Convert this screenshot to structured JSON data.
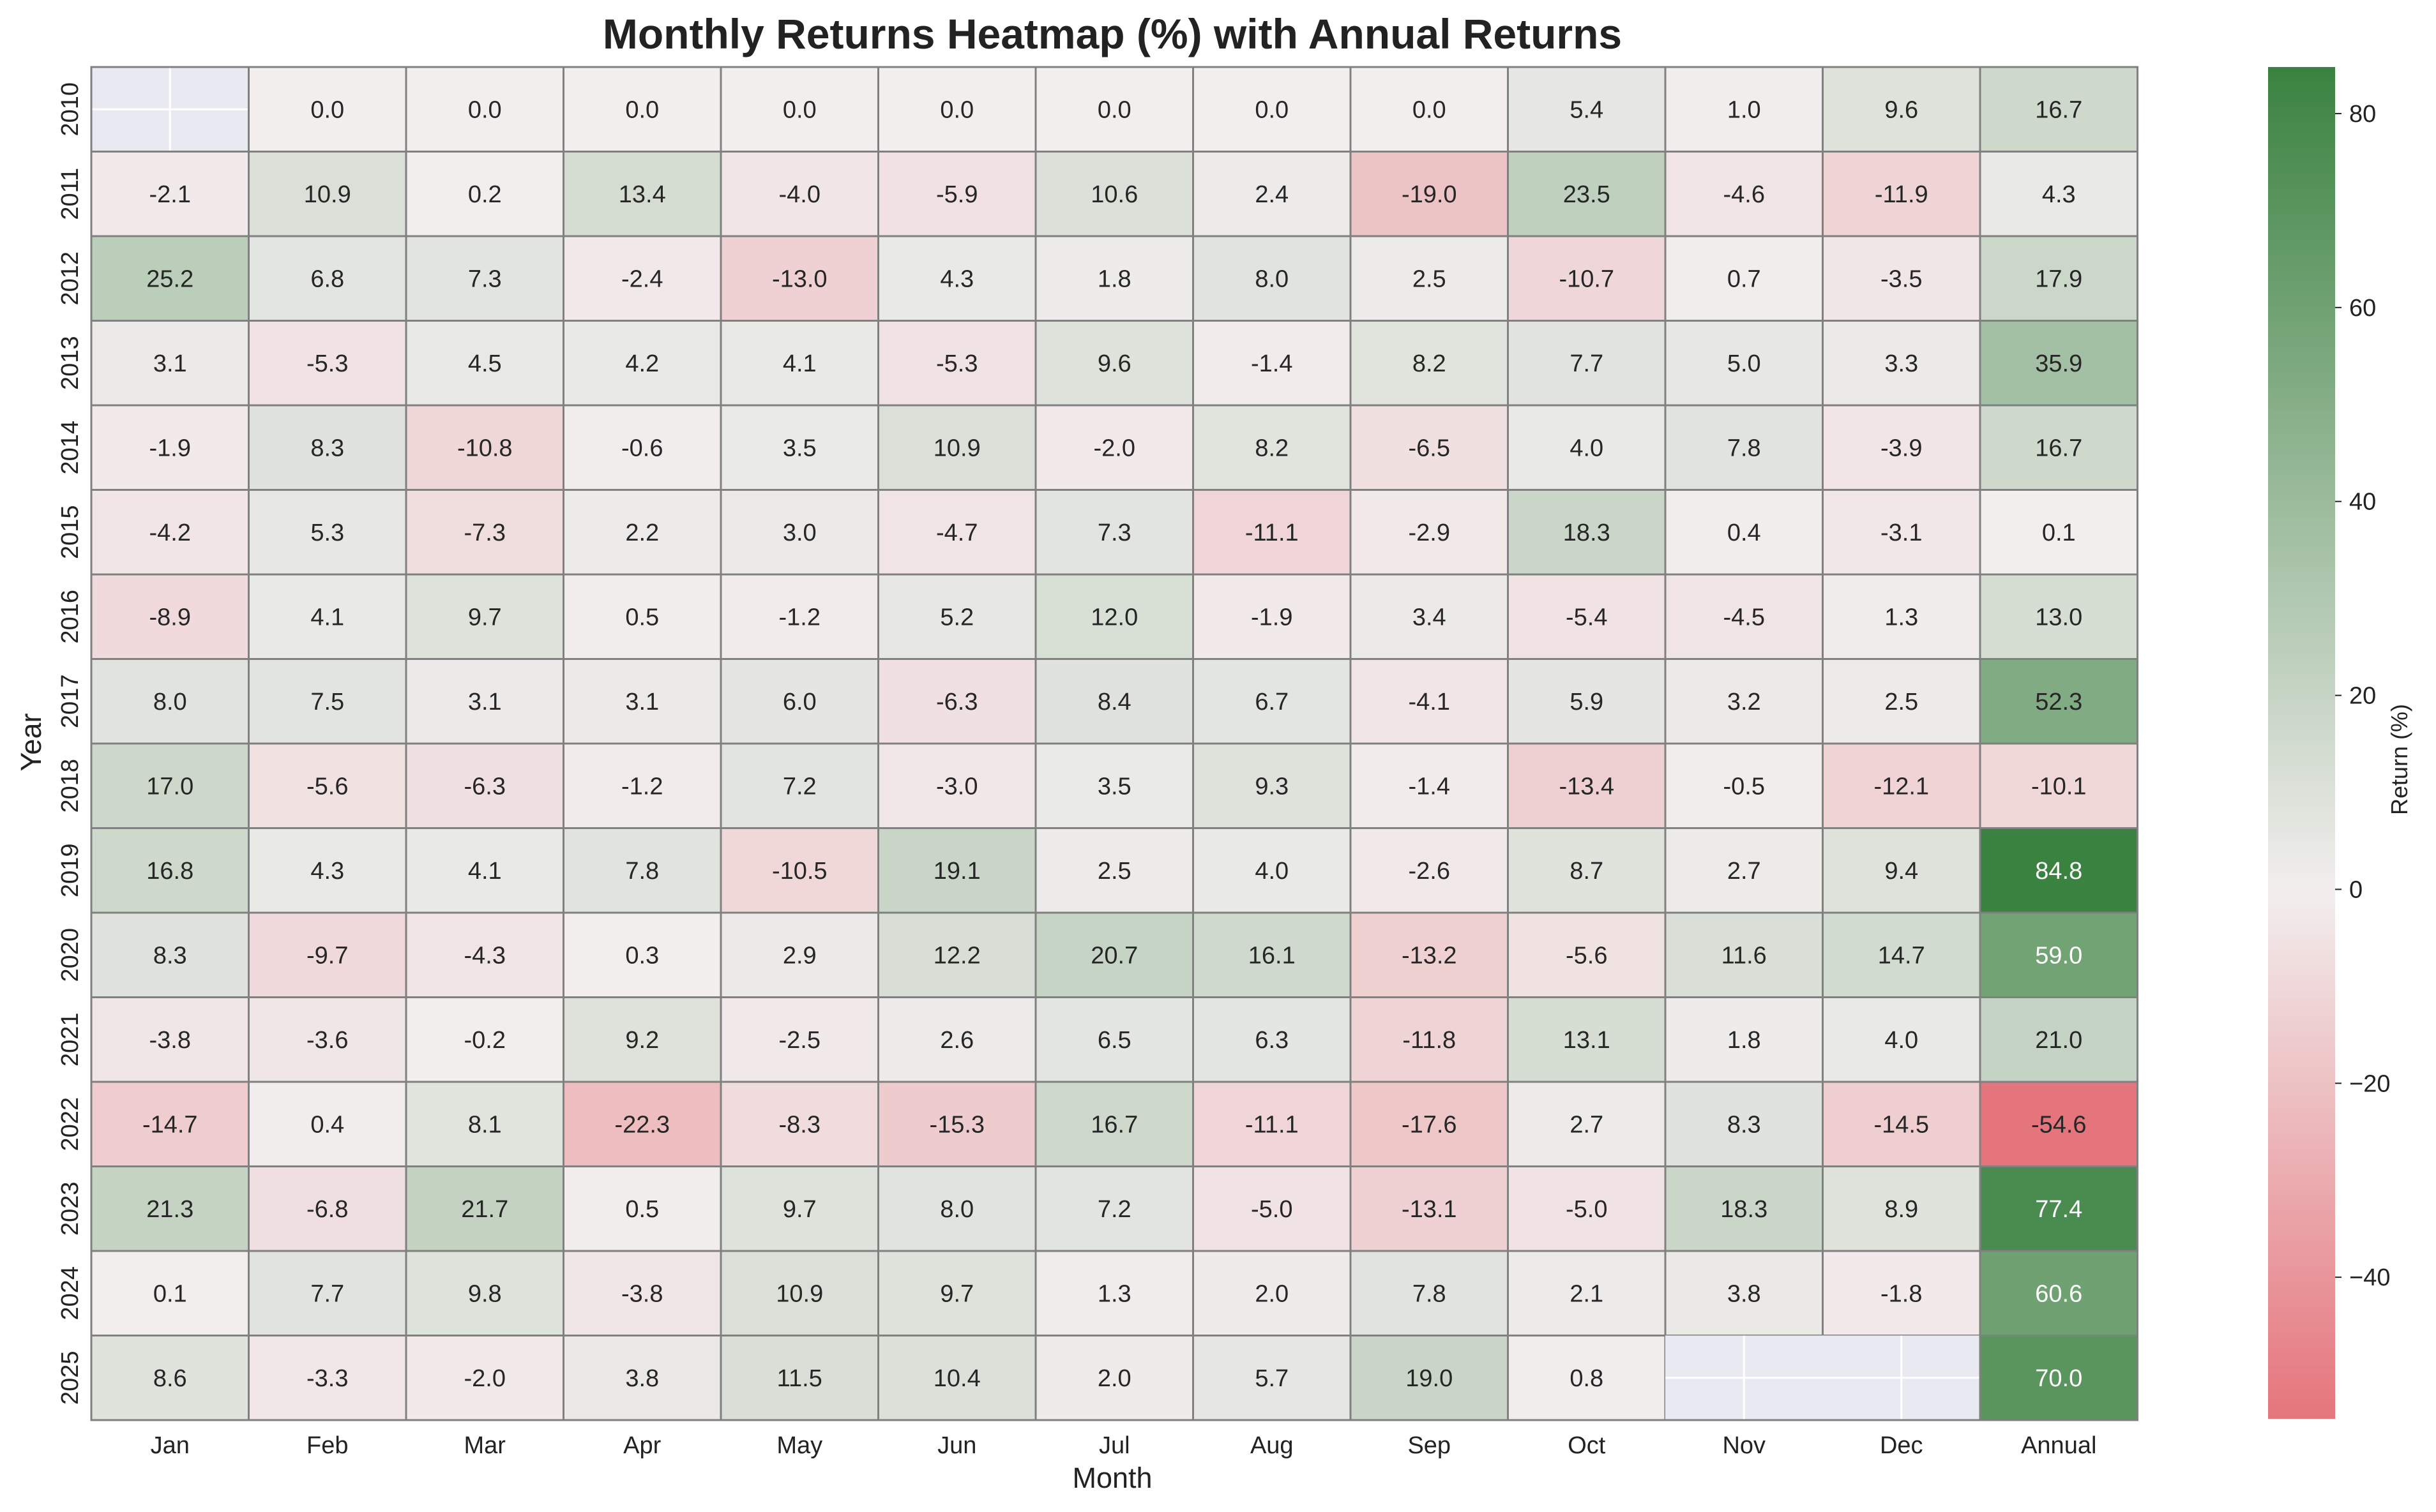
{
  "chart_data": {
    "type": "heatmap",
    "title": "Monthly Returns Heatmap (%) with Annual Returns",
    "xlabel": "Month",
    "ylabel": "Year",
    "columns": [
      "Jan",
      "Feb",
      "Mar",
      "Apr",
      "May",
      "Jun",
      "Jul",
      "Aug",
      "Sep",
      "Oct",
      "Nov",
      "Dec",
      "Annual"
    ],
    "rows": [
      "2010",
      "2011",
      "2012",
      "2013",
      "2014",
      "2015",
      "2016",
      "2017",
      "2018",
      "2019",
      "2020",
      "2021",
      "2022",
      "2023",
      "2024",
      "2025"
    ],
    "values": [
      [
        null,
        0.0,
        0.0,
        0.0,
        0.0,
        0.0,
        0.0,
        0.0,
        0.0,
        5.4,
        1.0,
        9.6,
        16.7
      ],
      [
        -2.1,
        10.9,
        0.2,
        13.4,
        -4.0,
        -5.9,
        10.6,
        2.4,
        -19.0,
        23.5,
        -4.6,
        -11.9,
        4.3
      ],
      [
        25.2,
        6.8,
        7.3,
        -2.4,
        -13.0,
        4.3,
        1.8,
        8.0,
        2.5,
        -10.7,
        0.7,
        -3.5,
        17.9
      ],
      [
        3.1,
        -5.3,
        4.5,
        4.2,
        4.1,
        -5.3,
        9.6,
        -1.4,
        8.2,
        7.7,
        5.0,
        3.3,
        35.9
      ],
      [
        -1.9,
        8.3,
        -10.8,
        -0.6,
        3.5,
        10.9,
        -2.0,
        8.2,
        -6.5,
        4.0,
        7.8,
        -3.9,
        16.7
      ],
      [
        -4.2,
        5.3,
        -7.3,
        2.2,
        3.0,
        -4.7,
        7.3,
        -11.1,
        -2.9,
        18.3,
        0.4,
        -3.1,
        0.1
      ],
      [
        -8.9,
        4.1,
        9.7,
        0.5,
        -1.2,
        5.2,
        12.0,
        -1.9,
        3.4,
        -5.4,
        -4.5,
        1.3,
        13.0
      ],
      [
        8.0,
        7.5,
        3.1,
        3.1,
        6.0,
        -6.3,
        8.4,
        6.7,
        -4.1,
        5.9,
        3.2,
        2.5,
        52.3
      ],
      [
        17.0,
        -5.6,
        -6.3,
        -1.2,
        7.2,
        -3.0,
        3.5,
        9.3,
        -1.4,
        -13.4,
        -0.5,
        -12.1,
        -10.1
      ],
      [
        16.8,
        4.3,
        4.1,
        7.8,
        -10.5,
        19.1,
        2.5,
        4.0,
        -2.6,
        8.7,
        2.7,
        9.4,
        84.8
      ],
      [
        8.3,
        -9.7,
        -4.3,
        0.3,
        2.9,
        12.2,
        20.7,
        16.1,
        -13.2,
        -5.6,
        11.6,
        14.7,
        59.0
      ],
      [
        -3.8,
        -3.6,
        -0.2,
        9.2,
        -2.5,
        2.6,
        6.5,
        6.3,
        -11.8,
        13.1,
        1.8,
        4.0,
        21.0
      ],
      [
        -14.7,
        0.4,
        8.1,
        -22.3,
        -8.3,
        -15.3,
        16.7,
        -11.1,
        -17.6,
        2.7,
        8.3,
        -14.5,
        -54.6
      ],
      [
        21.3,
        -6.8,
        21.7,
        0.5,
        9.7,
        8.0,
        7.2,
        -5.0,
        -13.1,
        -5.0,
        18.3,
        8.9,
        77.4
      ],
      [
        0.1,
        7.7,
        9.8,
        -3.8,
        10.9,
        9.7,
        1.3,
        2.0,
        7.8,
        2.1,
        3.8,
        -1.8,
        60.6
      ],
      [
        8.6,
        -3.3,
        -2.0,
        3.8,
        11.5,
        10.4,
        2.0,
        5.7,
        19.0,
        0.8,
        null,
        null,
        70.0
      ]
    ],
    "colorbar": {
      "label": "Return (%)",
      "min": -54.6,
      "max": 84.8,
      "center": 0,
      "ticks": [
        -40,
        -20,
        0,
        20,
        40,
        60,
        80
      ],
      "colors": {
        "negative": "#e5757c",
        "center": "#f2eeee",
        "positive": "#3a8240"
      }
    },
    "missing_color": "#e9e9f2",
    "grid": false
  }
}
